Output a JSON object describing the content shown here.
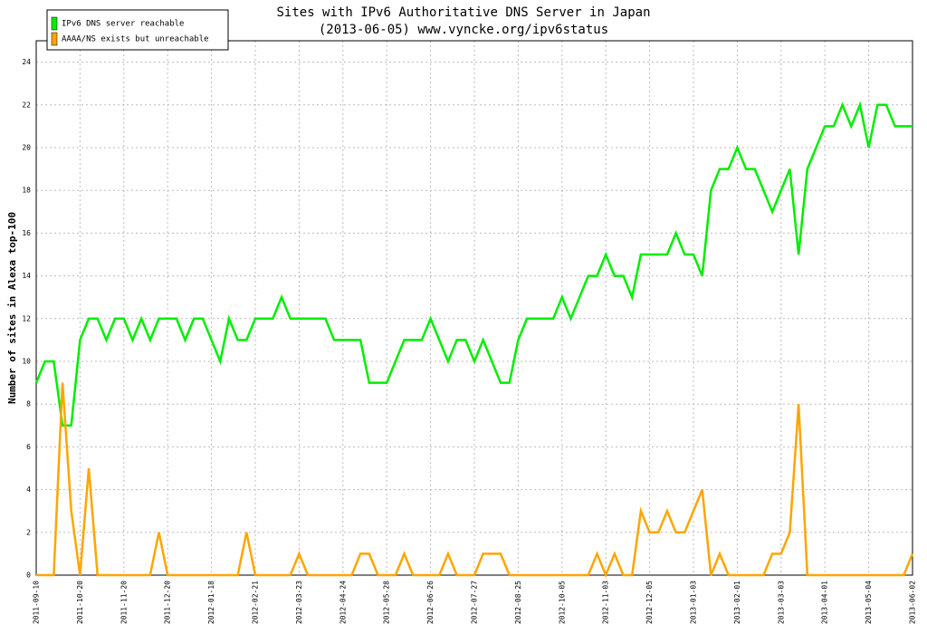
{
  "chart_data": {
    "type": "line",
    "title": "Sites with IPv6 Authoritative DNS Server in Japan",
    "subtitle": "(2013-06-05) www.vyncke.org/ipv6status",
    "y_label": "Number of sites in Alexa top-100",
    "categories": [
      "2011-09-10",
      null,
      null,
      null,
      null,
      "2011-10-20",
      null,
      null,
      null,
      null,
      "2011-11-20",
      null,
      null,
      null,
      null,
      "2011-12-20",
      null,
      null,
      null,
      null,
      "2012-01-18",
      null,
      null,
      null,
      null,
      "2012-02-21",
      null,
      null,
      null,
      null,
      "2012-03-23",
      null,
      null,
      null,
      null,
      "2012-04-24",
      null,
      null,
      null,
      null,
      "2012-05-28",
      null,
      null,
      null,
      null,
      "2012-06-26",
      null,
      null,
      null,
      null,
      "2012-07-27",
      null,
      null,
      null,
      null,
      "2012-08-25",
      null,
      null,
      null,
      null,
      "2012-10-05",
      null,
      null,
      null,
      null,
      "2012-11-03",
      null,
      null,
      null,
      null,
      "2012-12-05",
      null,
      null,
      null,
      null,
      "2013-01-03",
      null,
      null,
      null,
      null,
      "2013-02-01",
      null,
      null,
      null,
      null,
      "2013-03-03",
      null,
      null,
      null,
      null,
      "2013-04-01",
      null,
      null,
      null,
      null,
      "2013-05-04",
      null,
      null,
      null,
      null,
      "2013-06-02"
    ],
    "series": [
      {
        "name": "IPv6 DNS server reachable",
        "color": "#00ee00",
        "values": [
          9,
          10,
          10,
          7,
          7,
          11,
          12,
          12,
          11,
          12,
          12,
          11,
          12,
          11,
          12,
          12,
          12,
          11,
          12,
          12,
          11,
          10,
          12,
          11,
          11,
          12,
          12,
          12,
          13,
          12,
          12,
          12,
          12,
          12,
          11,
          11,
          11,
          11,
          9,
          9,
          9,
          10,
          11,
          11,
          11,
          12,
          11,
          10,
          11,
          11,
          10,
          11,
          10,
          9,
          9,
          11,
          12,
          12,
          12,
          12,
          13,
          12,
          13,
          14,
          14,
          15,
          14,
          14,
          13,
          15,
          15,
          15,
          15,
          16,
          15,
          15,
          14,
          18,
          19,
          19,
          20,
          19,
          19,
          18,
          17,
          18,
          19,
          15,
          19,
          20,
          21,
          21,
          22,
          21,
          22,
          20,
          22,
          22,
          21,
          21,
          21
        ]
      },
      {
        "name": "AAAA/NS exists but unreachable",
        "color": "#ffa500",
        "values": [
          0,
          0,
          0,
          9,
          3,
          0,
          5,
          0,
          0,
          0,
          0,
          0,
          0,
          0,
          2,
          0,
          0,
          0,
          0,
          0,
          0,
          0,
          0,
          0,
          2,
          0,
          0,
          0,
          0,
          0,
          1,
          0,
          0,
          0,
          0,
          0,
          0,
          1,
          1,
          0,
          0,
          0,
          1,
          0,
          0,
          0,
          0,
          1,
          0,
          0,
          0,
          1,
          1,
          1,
          0,
          0,
          0,
          0,
          0,
          0,
          0,
          0,
          0,
          0,
          1,
          0,
          1,
          0,
          0,
          3,
          2,
          2,
          3,
          2,
          2,
          3,
          4,
          0,
          1,
          0,
          0,
          0,
          0,
          0,
          1,
          1,
          2,
          8,
          0,
          0,
          0,
          0,
          0,
          0,
          0,
          0,
          0,
          0,
          0,
          0,
          1
        ]
      }
    ],
    "ylim": [
      0,
      25
    ],
    "yticks": [
      0,
      2,
      4,
      6,
      8,
      10,
      12,
      14,
      16,
      18,
      20,
      22,
      24
    ],
    "grid": true,
    "legend": "top-left"
  }
}
